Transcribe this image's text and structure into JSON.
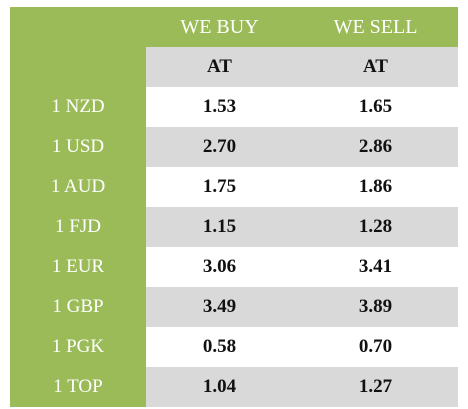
{
  "table": {
    "header": {
      "currency": "",
      "buy": "WE BUY",
      "sell": "WE SELL"
    },
    "subheader": {
      "currency": "",
      "buy": "AT",
      "sell": "AT"
    },
    "rows": [
      {
        "currency": "1 NZD",
        "buy": "1.53",
        "sell": "1.65"
      },
      {
        "currency": "1 USD",
        "buy": "2.70",
        "sell": "2.86"
      },
      {
        "currency": "1 AUD",
        "buy": "1.75",
        "sell": "1.86"
      },
      {
        "currency": "1 FJD",
        "buy": "1.15",
        "sell": "1.28"
      },
      {
        "currency": "1 EUR",
        "buy": "3.06",
        "sell": "3.41"
      },
      {
        "currency": "1 GBP",
        "buy": "3.49",
        "sell": "3.89"
      },
      {
        "currency": "1 PGK",
        "buy": "0.58",
        "sell": "0.70"
      },
      {
        "currency": "1 TOP",
        "buy": "1.04",
        "sell": "1.27"
      }
    ]
  },
  "colors": {
    "header_green": "#9bbb59",
    "row_shade": "#d9d9d9",
    "header_text": "#ffffff",
    "value_text": "#111111"
  }
}
